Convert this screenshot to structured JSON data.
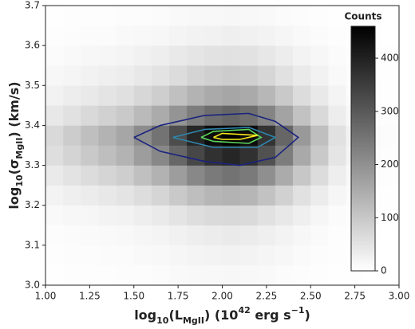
{
  "chart_data": {
    "type": "hist2d",
    "xlabel_parts": [
      {
        "text": "log",
        "shift": "base"
      },
      {
        "text": "10",
        "shift": "sub"
      },
      {
        "text": "(L",
        "shift": "base"
      },
      {
        "text": "MgII",
        "shift": "sub"
      },
      {
        "text": ") (10",
        "shift": "base"
      },
      {
        "text": "42",
        "shift": "super"
      },
      {
        "text": " erg s",
        "shift": "base"
      },
      {
        "text": "−1",
        "shift": "super"
      },
      {
        "text": ")",
        "shift": "base"
      }
    ],
    "ylabel_parts": [
      {
        "text": "log",
        "shift": "base"
      },
      {
        "text": "10",
        "shift": "sub"
      },
      {
        "text": "(σ",
        "shift": "base"
      },
      {
        "text": "MgII",
        "shift": "sub"
      },
      {
        "text": ") (km/s)",
        "shift": "base"
      }
    ],
    "xlim": [
      1.0,
      3.0
    ],
    "ylim": [
      3.0,
      3.7
    ],
    "xticks": [
      {
        "value": 1.0,
        "label": "1.00"
      },
      1.25,
      {
        "value": 1.5,
        "label": "1.50"
      },
      1.75,
      {
        "value": 2.0,
        "label": "2.00"
      },
      2.25,
      {
        "value": 2.5,
        "label": "2.50"
      },
      2.75,
      {
        "value": 3.0,
        "label": "3.00"
      }
    ],
    "yticks": [
      {
        "value": 3.0,
        "label": "3.0"
      },
      3.1,
      3.2,
      3.3,
      3.4,
      3.5,
      3.6,
      3.7
    ],
    "x_bins": [
      1.0,
      1.1,
      1.2,
      1.3,
      1.4,
      1.5,
      1.6,
      1.7,
      1.8,
      1.9,
      2.0,
      2.1,
      2.2,
      2.3,
      2.4,
      2.5,
      2.6,
      2.7,
      2.8,
      2.9,
      3.0
    ],
    "y_bins": [
      3.0,
      3.05,
      3.1,
      3.15,
      3.2,
      3.25,
      3.3,
      3.35,
      3.4,
      3.45,
      3.5,
      3.55,
      3.6,
      3.65,
      3.7
    ],
    "counts": [
      [
        2,
        3,
        3,
        4,
        5,
        6,
        8,
        10,
        12,
        13,
        14,
        13,
        11,
        8,
        6,
        3,
        2,
        1,
        0,
        0
      ],
      [
        3,
        5,
        6,
        7,
        8,
        10,
        13,
        16,
        20,
        22,
        23,
        22,
        18,
        14,
        9,
        6,
        3,
        1,
        0,
        0
      ],
      [
        6,
        7,
        9,
        11,
        13,
        17,
        20,
        26,
        31,
        35,
        37,
        35,
        29,
        22,
        15,
        9,
        4,
        2,
        1,
        0
      ],
      [
        10,
        14,
        17,
        21,
        24,
        31,
        38,
        48,
        59,
        66,
        69,
        66,
        55,
        41,
        28,
        17,
        8,
        3,
        1,
        1
      ],
      [
        21,
        28,
        35,
        41,
        48,
        62,
        76,
        97,
        117,
        131,
        138,
        131,
        110,
        83,
        55,
        35,
        17,
        7,
        3,
        2
      ],
      [
        38,
        51,
        63,
        76,
        89,
        114,
        139,
        177,
        215,
        240,
        253,
        240,
        202,
        152,
        101,
        63,
        30,
        13,
        5,
        3
      ],
      [
        59,
        78,
        98,
        117,
        137,
        176,
        215,
        274,
        332,
        371,
        391,
        371,
        313,
        235,
        156,
        98,
        47,
        20,
        8,
        4
      ],
      [
        69,
        92,
        115,
        138,
        161,
        207,
        253,
        322,
        391,
        437,
        460,
        437,
        368,
        276,
        184,
        115,
        55,
        23,
        9,
        5
      ],
      [
        41,
        55,
        69,
        83,
        97,
        124,
        152,
        193,
        235,
        262,
        276,
        262,
        221,
        166,
        110,
        69,
        33,
        14,
        5,
        3
      ],
      [
        24,
        32,
        40,
        48,
        56,
        72,
        89,
        113,
        137,
        153,
        161,
        153,
        129,
        97,
        64,
        40,
        19,
        8,
        3,
        2
      ],
      [
        14,
        18,
        23,
        28,
        32,
        41,
        51,
        64,
        78,
        87,
        92,
        87,
        74,
        55,
        37,
        23,
        11,
        5,
        2,
        1
      ],
      [
        8,
        11,
        14,
        17,
        19,
        25,
        30,
        39,
        47,
        52,
        55,
        52,
        44,
        33,
        22,
        14,
        7,
        3,
        1,
        1
      ],
      [
        4,
        6,
        7,
        8,
        10,
        12,
        15,
        19,
        23,
        26,
        28,
        26,
        22,
        17,
        11,
        7,
        3,
        1,
        1,
        0
      ],
      [
        2,
        3,
        3,
        4,
        5,
        6,
        8,
        10,
        12,
        13,
        14,
        13,
        11,
        8,
        6,
        3,
        2,
        1,
        0,
        0
      ]
    ],
    "contours": [
      {
        "color": "#1a237e",
        "x": [
          1.5,
          1.65,
          1.9,
          2.15,
          2.3,
          2.43,
          2.3,
          2.1,
          1.9,
          1.65,
          1.5
        ],
        "y": [
          3.37,
          3.4,
          3.425,
          3.43,
          3.41,
          3.37,
          3.32,
          3.3,
          3.31,
          3.335,
          3.37
        ]
      },
      {
        "color": "#2e86ab",
        "x": [
          1.72,
          1.9,
          2.15,
          2.3,
          2.2,
          1.95,
          1.72
        ],
        "y": [
          3.37,
          3.39,
          3.395,
          3.37,
          3.345,
          3.345,
          3.37
        ]
      },
      {
        "color": "#5cd65c",
        "x": [
          1.88,
          1.95,
          2.15,
          2.22,
          2.15,
          1.95,
          1.88
        ],
        "y": [
          3.37,
          3.385,
          3.39,
          3.37,
          3.355,
          3.36,
          3.37
        ]
      },
      {
        "color": "#f5e61c",
        "x": [
          1.95,
          2.0,
          2.2,
          2.1,
          2.0,
          1.95
        ],
        "y": [
          3.37,
          3.38,
          3.375,
          3.365,
          3.365,
          3.37
        ]
      }
    ],
    "colorbar": {
      "label": "Counts",
      "clim": [
        0,
        460
      ],
      "ticks": [
        0,
        100,
        200,
        300,
        400
      ]
    }
  }
}
